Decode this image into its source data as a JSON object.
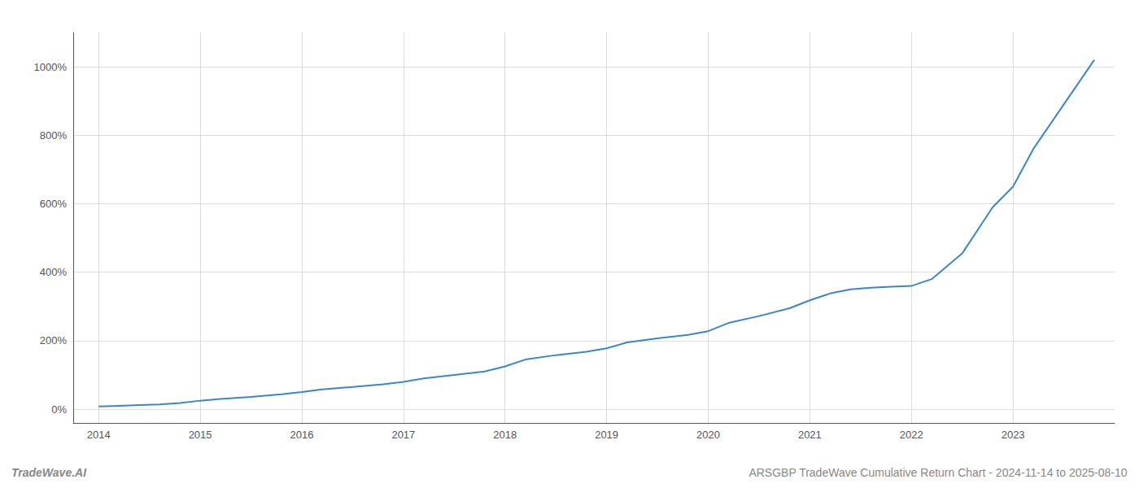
{
  "chart_data": {
    "type": "line",
    "x": [
      2014.0,
      2014.2,
      2014.4,
      2014.6,
      2014.8,
      2015.0,
      2015.2,
      2015.5,
      2015.8,
      2016.0,
      2016.2,
      2016.5,
      2016.8,
      2017.0,
      2017.2,
      2017.5,
      2017.8,
      2018.0,
      2018.2,
      2018.5,
      2018.8,
      2019.0,
      2019.2,
      2019.5,
      2019.8,
      2020.0,
      2020.2,
      2020.5,
      2020.8,
      2021.0,
      2021.2,
      2021.4,
      2021.6,
      2021.8,
      2022.0,
      2022.2,
      2022.5,
      2022.8,
      2023.0,
      2023.2,
      2023.5,
      2023.8
    ],
    "values": [
      8,
      10,
      12,
      14,
      18,
      25,
      30,
      36,
      44,
      50,
      58,
      65,
      73,
      80,
      90,
      100,
      110,
      125,
      145,
      158,
      168,
      178,
      195,
      207,
      217,
      228,
      252,
      272,
      295,
      318,
      338,
      350,
      355,
      358,
      360,
      380,
      455,
      590,
      650,
      760,
      890,
      1020
    ],
    "color": "#3a87c8",
    "xlim": [
      2013.75,
      2024.0
    ],
    "xticks": [
      2014,
      2015,
      2016,
      2017,
      2018,
      2019,
      2020,
      2021,
      2022,
      2023
    ],
    "ylim": [
      -40,
      1100
    ],
    "yticks": [
      {
        "value": 0,
        "label": "0%"
      },
      {
        "value": 200,
        "label": "200%"
      },
      {
        "value": 400,
        "label": "400%"
      },
      {
        "value": 600,
        "label": "600%"
      },
      {
        "value": 800,
        "label": "800%"
      },
      {
        "value": 1000,
        "label": "1000%"
      }
    ],
    "grid": true,
    "annotations": [
      "TradeWave.AI",
      "ARSGBP TradeWave Cumulative Return Chart - 2024-11-14 to 2025-08-10"
    ]
  }
}
